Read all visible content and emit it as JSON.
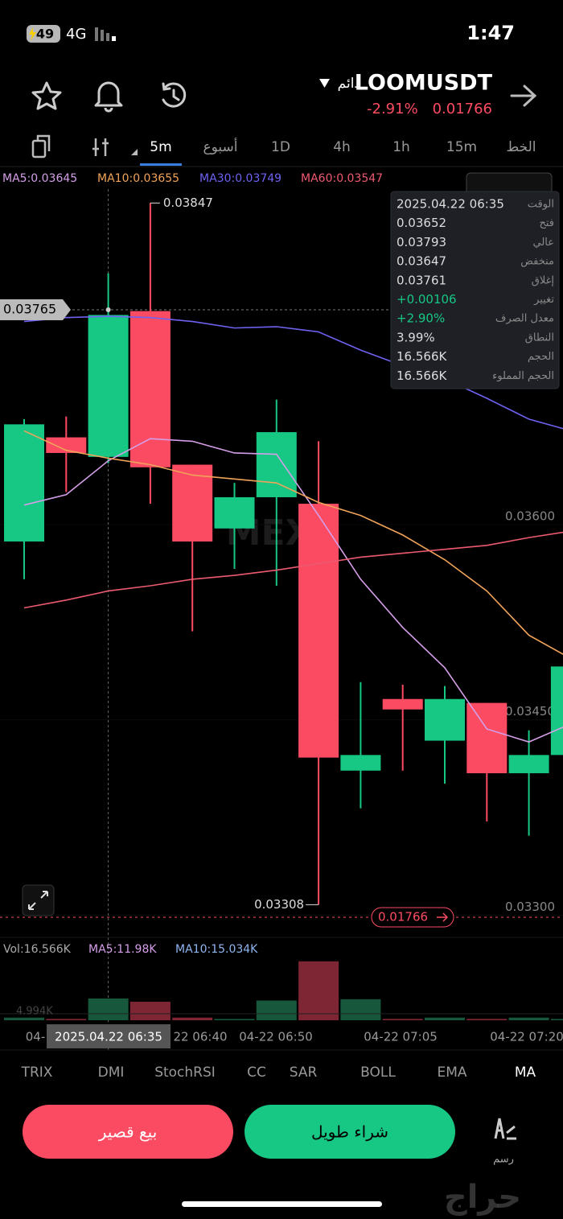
{
  "status_bar": {
    "time": "1:47",
    "battery": "49",
    "network": "4G"
  },
  "header": {
    "symbol": "LOOMUSDT",
    "contract": "دائم",
    "change": "-2.91%",
    "price": "0.01766"
  },
  "timeframes": [
    "5m",
    "أسبوع",
    "1D",
    "4h",
    "1h",
    "15m",
    "الخط"
  ],
  "active_timeframe": "5m",
  "ma_legend": [
    {
      "text": "MA5:0.03645",
      "color": "#d59ee8"
    },
    {
      "text": "MA10:0.03655",
      "color": "#f0a35a"
    },
    {
      "text": "MA30:0.03749",
      "color": "#6e62f2"
    },
    {
      "text": "MA60:0.03547",
      "color": "#ec5a70"
    }
  ],
  "chart_data": {
    "type": "candlestick",
    "watermark": "MEXC",
    "up_color": "#17c784",
    "down_color": "#fb4b62",
    "ylim": [
      0.03286,
      0.03875
    ],
    "yticks": [
      {
        "value": 0.036,
        "label": "0.03600"
      },
      {
        "value": 0.0345,
        "label": "0.03450"
      },
      {
        "value": 0.033,
        "label": "0.03300"
      }
    ],
    "open": [
      0.03587,
      0.03667,
      0.03652,
      0.03764,
      0.03646,
      0.03597,
      0.03621,
      0.03616,
      0.03411,
      0.03466,
      0.03434,
      0.03463,
      0.03409,
      0.03423
    ],
    "high": [
      0.03681,
      0.03683,
      0.03793,
      0.03847,
      0.03646,
      0.03632,
      0.03696,
      0.03664,
      0.03479,
      0.03477,
      0.03476,
      0.03463,
      0.03442,
      0.03491
    ],
    "low": [
      0.03558,
      0.03625,
      0.03647,
      0.03616,
      0.03518,
      0.03566,
      0.03553,
      0.03308,
      0.03382,
      0.03411,
      0.03401,
      0.03372,
      0.03361,
      0.03423
    ],
    "close": [
      0.03677,
      0.03655,
      0.03761,
      0.03644,
      0.03587,
      0.03621,
      0.03671,
      0.03421,
      0.03423,
      0.03458,
      0.03466,
      0.03409,
      0.03423,
      0.03491
    ],
    "high_marker_index": 3,
    "low_marker_index": 7,
    "selected_index": 2,
    "crosshair_price": 0.03765,
    "current_price_tag": "0.01766",
    "ma_series": [
      {
        "name": "MA5",
        "color": "#d59ee8",
        "values": [
          0.03615,
          0.03623,
          0.03649,
          0.03666,
          0.03664,
          0.03655,
          0.03654,
          0.03607,
          0.03558,
          0.03521,
          0.0349,
          0.03443,
          0.03433,
          0.03447
        ]
      },
      {
        "name": "MA10",
        "color": "#f0a35a",
        "values": [
          0.03672,
          0.03657,
          0.03651,
          0.03646,
          0.03638,
          0.03635,
          0.03632,
          0.03617,
          0.03607,
          0.03592,
          0.03573,
          0.03549,
          0.03515,
          0.03497
        ]
      },
      {
        "name": "MA30",
        "color": "#6e62f2",
        "values": [
          0.03756,
          0.03759,
          0.0376,
          0.03759,
          0.03756,
          0.03751,
          0.03752,
          0.03748,
          0.03734,
          0.03722,
          0.03712,
          0.03697,
          0.03681,
          0.03672
        ]
      },
      {
        "name": "MA60",
        "color": "#ec5a70",
        "values": [
          0.03536,
          0.03542,
          0.03549,
          0.03553,
          0.03558,
          0.03561,
          0.03565,
          0.0357,
          0.03575,
          0.03578,
          0.03581,
          0.03584,
          0.0359,
          0.03595
        ]
      }
    ],
    "x_labels": [
      "04-",
      "2025.04.22 06:35",
      "22 06:40",
      "04-22 06:50",
      "04-22 07:05",
      "04-22 07:20"
    ],
    "volume": {
      "legend": [
        {
          "text": "Vol:16.566K",
          "color": "#aaaaaa"
        },
        {
          "text": "MA5:11.98K",
          "color": "#d59ee8"
        },
        {
          "text": "MA10:15.034K",
          "color": "#8fb6f0"
        }
      ],
      "values": [
        2,
        1,
        16.566,
        14.1,
        2,
        1,
        15,
        44.8,
        16,
        1,
        2,
        1,
        2,
        1
      ],
      "ylim": [
        0,
        63
      ],
      "yticks": [
        {
          "value": 4.994,
          "label": "4.994K"
        }
      ]
    }
  },
  "tooltip": {
    "rows": [
      [
        "الوقت",
        "2025.04.22 06:35"
      ],
      [
        "فتح",
        "0.03652"
      ],
      [
        "عالي",
        "0.03793"
      ],
      [
        "منخفض",
        "0.03647"
      ],
      [
        "إغلاق",
        "0.03761"
      ],
      [
        "تغيير",
        "+0.00106"
      ],
      [
        "معدل الصرف",
        "+2.90%"
      ],
      [
        "النطاق",
        "3.99%"
      ],
      [
        "الحجم",
        "16.566K"
      ],
      [
        "الحجم المملوء",
        "16.566K"
      ]
    ]
  },
  "indicators": [
    "TRIX",
    "DMI",
    "StochRSI",
    "CC",
    "SAR",
    "BOLL",
    "EMA",
    "MA"
  ],
  "active_indicator": "MA",
  "buttons": {
    "sell": "بيع قصير",
    "buy": "شراء طويل",
    "draw": "رسم"
  },
  "watermark": "حراج"
}
